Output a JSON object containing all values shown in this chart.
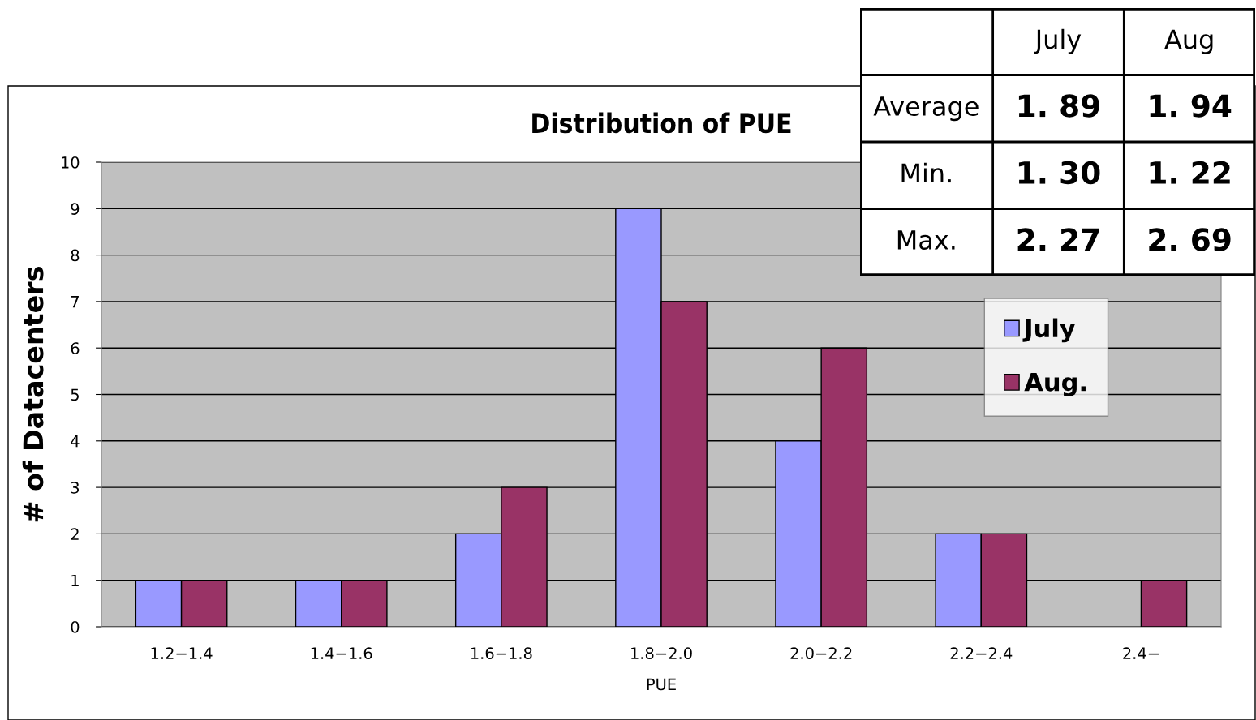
{
  "chart_data": [
    {
      "type": "bar",
      "title": "Distribution of PUE",
      "xlabel": "PUE",
      "ylabel": "# of Datacenters",
      "categories": [
        "1.2−1.4",
        "1.4−1.6",
        "1.6−1.8",
        "1.8−2.0",
        "2.0−2.2",
        "2.2−2.4",
        "2.4−"
      ],
      "series": [
        {
          "name": "July",
          "color": "#9999ff",
          "values": [
            1,
            1,
            2,
            9,
            4,
            2,
            0
          ]
        },
        {
          "name": "Aug.",
          "color": "#993366",
          "values": [
            1,
            1,
            3,
            7,
            6,
            2,
            1
          ]
        }
      ],
      "ylim": [
        0,
        10
      ],
      "yticks": [
        0,
        1,
        2,
        3,
        4,
        5,
        6,
        7,
        8,
        9,
        10
      ],
      "grid": "y",
      "legend": "right"
    },
    {
      "type": "other",
      "categories": [
        "July",
        "Aug"
      ],
      "y_categories": [
        "Average",
        "Min.",
        "Max."
      ],
      "cell_labels": [
        [
          "1. 89",
          "1. 94"
        ],
        [
          "1. 30",
          "1. 22"
        ],
        [
          "2. 27",
          "2. 69"
        ]
      ]
    }
  ]
}
